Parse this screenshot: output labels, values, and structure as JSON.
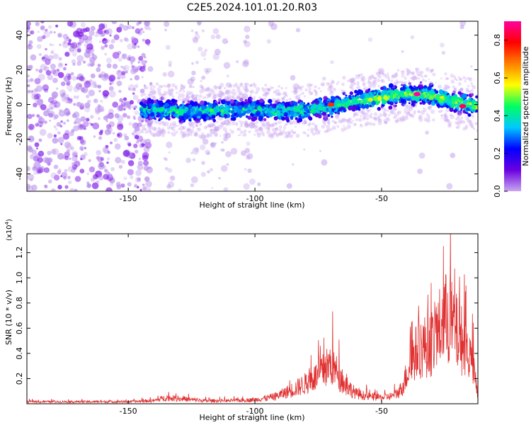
{
  "title": "C2E5.2024.101.01.20.R03",
  "chart_data": [
    {
      "type": "heatmap",
      "xlabel": "Height of straight line (km)",
      "ylabel": "Frequency (Hz)",
      "xlim": [
        -190,
        -12
      ],
      "ylim": [
        -50,
        48
      ],
      "x_ticks": [
        -150,
        -100,
        -50
      ],
      "y_ticks": [
        -40,
        -20,
        0,
        20,
        40
      ],
      "colorbar": {
        "label": "Normalized spectral amplitude",
        "range": [
          0.0,
          0.9
        ],
        "ticks": [
          0.0,
          0.2,
          0.4,
          0.6,
          0.8
        ],
        "colors": [
          "#c8a8f0",
          "#6a00e0",
          "#0000ff",
          "#00c8ff",
          "#00ff60",
          "#ffff00",
          "#ff8000",
          "#ff0000",
          "#ff00a0"
        ]
      },
      "ridge": {
        "x": [
          -190,
          -175,
          -160,
          -145,
          -140,
          -130,
          -120,
          -110,
          -100,
          -90,
          -80,
          -70,
          -60,
          -50,
          -40,
          -35,
          -30,
          -25,
          -20,
          -15,
          -12
        ],
        "y": [
          -3,
          -3,
          -3,
          -3,
          -3,
          -4,
          -4,
          -3,
          -3,
          -4,
          -3,
          -1,
          2,
          4,
          6,
          6,
          5,
          3,
          1,
          0,
          -1
        ]
      },
      "peaks": [
        {
          "x": -70,
          "y": 0,
          "amp": 0.75
        },
        {
          "x": -36,
          "y": 6,
          "amp": 0.9
        },
        {
          "x": -18,
          "y": -1,
          "amp": 0.85
        }
      ]
    },
    {
      "type": "line",
      "xlabel": "Height of straight line (km)",
      "ylabel": "SNR (10 * v/v)",
      "multiplier_label": "(x10",
      "multiplier_exp": "4",
      "multiplier_close": ")",
      "xlim": [
        -190,
        -12
      ],
      "ylim": [
        0,
        1.35
      ],
      "x_ticks": [
        -150,
        -100,
        -50
      ],
      "y_ticks": [
        0.2,
        0.4,
        0.6,
        0.8,
        1.0,
        1.2
      ],
      "line_color": "#e03030",
      "series": [
        {
          "x": [
            -190,
            -150,
            -140,
            -135,
            -130,
            -125,
            -120,
            -110,
            -100,
            -92,
            -85,
            -80,
            -75,
            -72,
            -70,
            -68,
            -65,
            -60,
            -55,
            -50,
            -45,
            -42,
            -40,
            -38,
            -35,
            -30,
            -27,
            -25,
            -22,
            -20,
            -18,
            -15,
            -13,
            -12
          ],
          "y": [
            0.02,
            0.02,
            0.03,
            0.06,
            0.05,
            0.04,
            0.03,
            0.03,
            0.04,
            0.07,
            0.14,
            0.2,
            0.28,
            0.35,
            0.4,
            0.32,
            0.2,
            0.1,
            0.07,
            0.06,
            0.08,
            0.15,
            0.3,
            0.45,
            0.55,
            0.6,
            0.75,
            0.85,
            0.78,
            0.68,
            0.62,
            0.45,
            0.25,
            0.05
          ]
        }
      ]
    }
  ]
}
